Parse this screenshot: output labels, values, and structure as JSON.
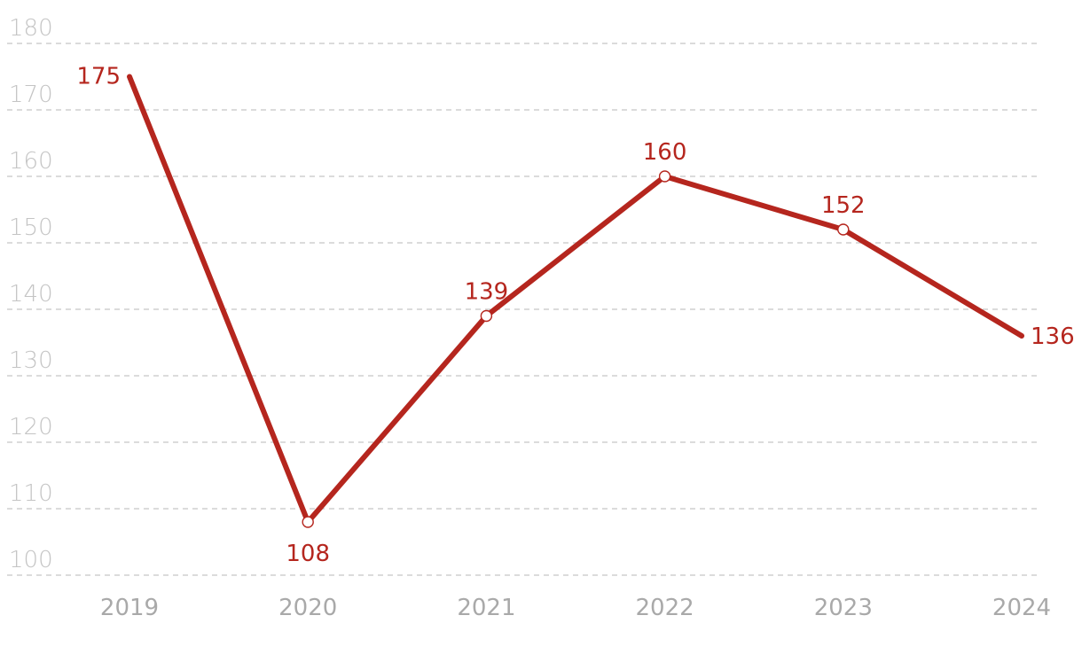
{
  "chart_data": {
    "type": "line",
    "title": "",
    "xlabel": "",
    "ylabel": "",
    "x": [
      "2019",
      "2020",
      "2021",
      "2022",
      "2023",
      "2024"
    ],
    "series": [
      {
        "values": [
          175,
          108,
          139,
          160,
          152,
          136
        ]
      }
    ],
    "ylim": [
      100,
      180
    ],
    "yticks": [
      100,
      110,
      120,
      130,
      140,
      150,
      160,
      170,
      180
    ],
    "grid": true,
    "legend": "none",
    "colors": {
      "line": "#b5261e",
      "grid": "#cfcfcf",
      "y_tick_text": "#c4c4c4",
      "x_tick_text": "#a9a9a9"
    }
  }
}
